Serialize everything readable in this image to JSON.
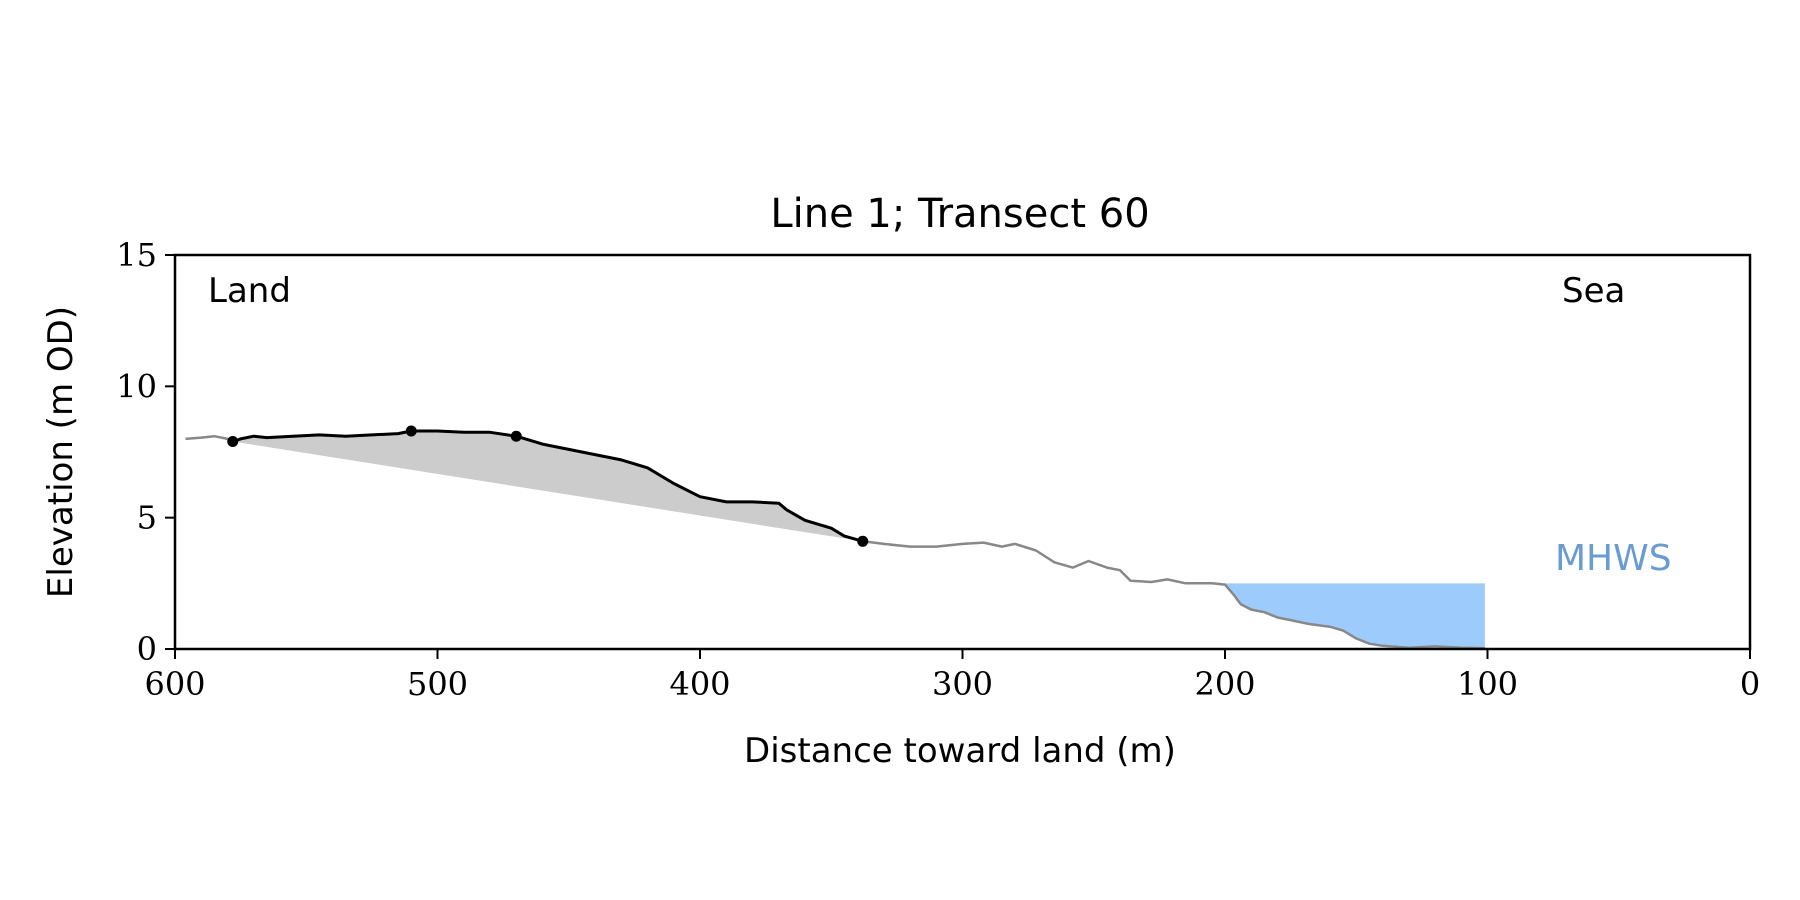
{
  "chart_data": {
    "type": "line",
    "title": "Line 1; Transect 60",
    "xlabel": "Distance toward land (m)",
    "ylabel": "Elevation (m OD)",
    "xlim": [
      600,
      0
    ],
    "ylim": [
      0,
      15
    ],
    "xticks": [
      600,
      500,
      400,
      300,
      200,
      100,
      0
    ],
    "yticks": [
      0,
      5,
      10,
      15
    ],
    "grid": false,
    "annotations": {
      "land": "Land",
      "sea": "Sea",
      "mhws": "MHWS"
    },
    "mhws": {
      "level": 2.5,
      "x_from": 200,
      "x_to": 101
    },
    "series": [
      {
        "role": "profile",
        "color": "#888888",
        "points": [
          [
            596,
            8.0
          ],
          [
            590,
            8.05
          ],
          [
            585,
            8.1
          ],
          [
            580,
            8.0
          ],
          [
            578,
            7.9
          ],
          [
            575,
            8.0
          ],
          [
            570,
            8.1
          ],
          [
            565,
            8.05
          ],
          [
            555,
            8.1
          ],
          [
            545,
            8.15
          ],
          [
            535,
            8.1
          ],
          [
            525,
            8.15
          ],
          [
            515,
            8.2
          ],
          [
            510,
            8.3
          ],
          [
            500,
            8.3
          ],
          [
            490,
            8.25
          ],
          [
            480,
            8.25
          ],
          [
            470,
            8.1
          ],
          [
            460,
            7.8
          ],
          [
            450,
            7.6
          ],
          [
            440,
            7.4
          ],
          [
            430,
            7.2
          ],
          [
            420,
            6.9
          ],
          [
            410,
            6.3
          ],
          [
            400,
            5.8
          ],
          [
            390,
            5.6
          ],
          [
            380,
            5.6
          ],
          [
            370,
            5.55
          ],
          [
            367,
            5.3
          ],
          [
            360,
            4.9
          ],
          [
            350,
            4.6
          ],
          [
            345,
            4.3
          ],
          [
            338,
            4.1
          ],
          [
            330,
            4.0
          ],
          [
            320,
            3.9
          ],
          [
            310,
            3.9
          ],
          [
            300,
            4.0
          ],
          [
            292,
            4.05
          ],
          [
            285,
            3.9
          ],
          [
            280,
            4.0
          ],
          [
            272,
            3.75
          ],
          [
            265,
            3.3
          ],
          [
            258,
            3.1
          ],
          [
            252,
            3.35
          ],
          [
            245,
            3.1
          ],
          [
            240,
            3.0
          ],
          [
            236,
            2.6
          ],
          [
            228,
            2.55
          ],
          [
            222,
            2.65
          ],
          [
            215,
            2.5
          ],
          [
            205,
            2.5
          ],
          [
            200,
            2.45
          ],
          [
            197,
            2.1
          ],
          [
            194,
            1.7
          ],
          [
            190,
            1.5
          ],
          [
            185,
            1.4
          ],
          [
            180,
            1.2
          ],
          [
            175,
            1.1
          ],
          [
            168,
            0.95
          ],
          [
            160,
            0.85
          ],
          [
            155,
            0.7
          ],
          [
            150,
            0.4
          ],
          [
            145,
            0.2
          ],
          [
            140,
            0.12
          ],
          [
            130,
            0.05
          ],
          [
            120,
            0.1
          ],
          [
            110,
            0.05
          ],
          [
            101,
            0.03
          ]
        ]
      },
      {
        "role": "section",
        "color": "#000000",
        "points": [
          [
            578,
            7.9
          ],
          [
            575,
            8.0
          ],
          [
            570,
            8.1
          ],
          [
            565,
            8.05
          ],
          [
            555,
            8.1
          ],
          [
            545,
            8.15
          ],
          [
            535,
            8.1
          ],
          [
            525,
            8.15
          ],
          [
            515,
            8.2
          ],
          [
            510,
            8.3
          ],
          [
            500,
            8.3
          ],
          [
            490,
            8.25
          ],
          [
            480,
            8.25
          ],
          [
            470,
            8.1
          ],
          [
            460,
            7.8
          ],
          [
            450,
            7.6
          ],
          [
            440,
            7.4
          ],
          [
            430,
            7.2
          ],
          [
            420,
            6.9
          ],
          [
            410,
            6.3
          ],
          [
            400,
            5.8
          ],
          [
            390,
            5.6
          ],
          [
            380,
            5.6
          ],
          [
            370,
            5.55
          ],
          [
            367,
            5.3
          ],
          [
            360,
            4.9
          ],
          [
            350,
            4.6
          ],
          [
            345,
            4.3
          ],
          [
            338,
            4.1
          ]
        ]
      }
    ],
    "markers": [
      [
        578,
        7.9
      ],
      [
        510,
        8.3
      ],
      [
        470,
        8.1
      ],
      [
        338,
        4.1
      ]
    ],
    "fill": {
      "color": "#cccccc",
      "baseline_from": [
        578,
        7.9
      ],
      "baseline_to": [
        338,
        4.1
      ]
    }
  }
}
